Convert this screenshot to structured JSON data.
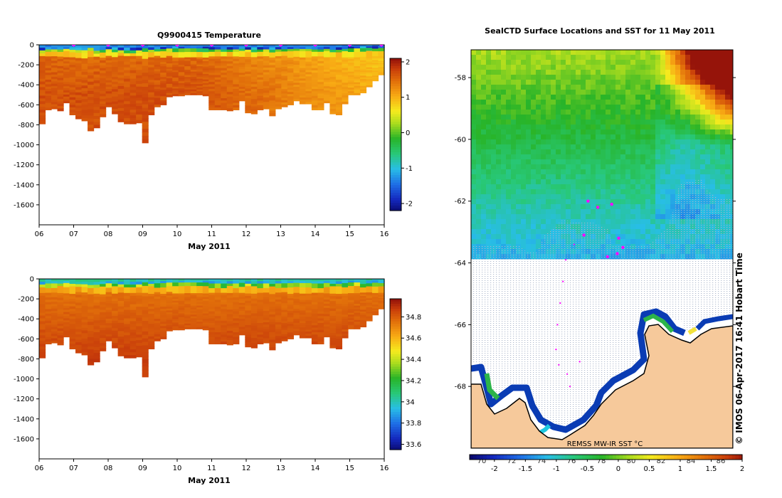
{
  "chart_data": [
    {
      "type": "heatmap",
      "title": "Q9900415  Temperature",
      "xlabel": "May 2011",
      "ylabel": "",
      "x_ticks": [
        "06",
        "07",
        "08",
        "09",
        "10",
        "11",
        "12",
        "13",
        "14",
        "15",
        "16"
      ],
      "x_values": [
        6,
        7,
        8,
        9,
        10,
        11,
        12,
        13,
        14,
        15,
        16
      ],
      "y_ticks": [
        "0",
        "-200",
        "-400",
        "-600",
        "-800",
        "-1000",
        "-1200",
        "-1400",
        "-1600"
      ],
      "y_values": [
        0,
        -200,
        -400,
        -600,
        -800,
        -1000,
        -1200,
        -1400,
        -1600
      ],
      "ylim": [
        -1800,
        0
      ],
      "xlim": [
        6,
        16
      ],
      "colorbar": {
        "ticks": [
          "2",
          "1",
          "0",
          "-1",
          "-2"
        ],
        "values": [
          2,
          1,
          0,
          -1,
          -2
        ],
        "range": [
          -2.2,
          2.1
        ]
      },
      "surface_markers_days": [
        7,
        8,
        9,
        10,
        11,
        12,
        13,
        14,
        15,
        16
      ],
      "profile_max_depth": [
        -790,
        -650,
        -640,
        -660,
        -580,
        -700,
        -740,
        -760,
        -860,
        -830,
        -720,
        -620,
        -690,
        -770,
        -790,
        -790,
        -780,
        -980,
        -700,
        -620,
        -600,
        -520,
        -510,
        -510,
        -500,
        -500,
        -500,
        -510,
        -650,
        -650,
        -650,
        -660,
        -650,
        -560,
        -680,
        -690,
        -650,
        -640,
        -710,
        -640,
        -620,
        -600,
        -560,
        -590,
        -590,
        -650,
        -650,
        -580,
        -690,
        -700,
        -590,
        -500,
        -500,
        -480,
        -420,
        -360,
        -300
      ]
    },
    {
      "type": "heatmap",
      "title": "",
      "xlabel": "May 2011",
      "ylabel": "",
      "x_ticks": [
        "06",
        "07",
        "08",
        "09",
        "10",
        "11",
        "12",
        "13",
        "14",
        "15",
        "16"
      ],
      "x_values": [
        6,
        7,
        8,
        9,
        10,
        11,
        12,
        13,
        14,
        15,
        16
      ],
      "y_ticks": [
        "0",
        "-200",
        "-400",
        "-600",
        "-800",
        "-1000",
        "-1200",
        "-1400",
        "-1600"
      ],
      "y_values": [
        0,
        -200,
        -400,
        -600,
        -800,
        -1000,
        -1200,
        -1400,
        -1600
      ],
      "ylim": [
        -1800,
        0
      ],
      "xlim": [
        6,
        16
      ],
      "colorbar": {
        "ticks": [
          "34.8",
          "34.6",
          "34.4",
          "34.2",
          "34",
          "33.8",
          "33.6"
        ],
        "values": [
          34.8,
          34.6,
          34.4,
          34.2,
          34.0,
          33.8,
          33.6
        ],
        "range": [
          33.55,
          34.97
        ]
      }
    },
    {
      "type": "heatmap",
      "title": "SealCTD Surface Locations and SST for 11 May 2011",
      "xlabel": "",
      "ylabel": "",
      "y_ticks": [
        "-58",
        "-60",
        "-62",
        "-64",
        "-66",
        "-68"
      ],
      "y_values": [
        -58,
        -60,
        -62,
        -64,
        -66,
        -68
      ],
      "ylim": [
        -70.0,
        -57.1
      ],
      "x_ticks": [
        "70",
        "72",
        "74",
        "76",
        "78",
        "80",
        "82",
        "84",
        "86"
      ],
      "x_values": [
        70,
        72,
        74,
        76,
        78,
        80,
        82,
        84,
        86
      ],
      "colorbar": {
        "ticks": [
          "-2",
          "-1.5",
          "-1",
          "-0.5",
          "0",
          "0.5",
          "1",
          "1.5",
          "2"
        ],
        "values": [
          -2,
          -1.5,
          -1,
          -0.5,
          0,
          0.5,
          1,
          1.5,
          2
        ],
        "range": [
          -2.4,
          2.0
        ]
      },
      "seal_positions_deg": [
        [
          76.8,
          -62.0
        ],
        [
          77.5,
          -62.2
        ],
        [
          78.5,
          -62.1
        ],
        [
          79.0,
          -63.2
        ],
        [
          79.3,
          -63.5
        ],
        [
          78.9,
          -63.7
        ],
        [
          78.2,
          -63.8
        ],
        [
          76.5,
          -63.1
        ],
        [
          75.8,
          -63.4
        ],
        [
          75.2,
          -63.9
        ],
        [
          75.0,
          -64.6
        ],
        [
          74.8,
          -65.3
        ],
        [
          74.6,
          -66.0
        ],
        [
          74.5,
          -66.8
        ],
        [
          74.7,
          -67.3
        ],
        [
          75.3,
          -67.6
        ],
        [
          75.5,
          -68.0
        ],
        [
          76.2,
          -67.2
        ]
      ],
      "annotation": "REMSS MW-IR SST °C"
    }
  ],
  "side_credit": "© IMOS 06-Apr-2017 16:41 Hobart Time",
  "colors": {
    "land": "#f6c99b",
    "seal_marker": "#ff00ff",
    "ice_dots": "#c8d0dc"
  }
}
